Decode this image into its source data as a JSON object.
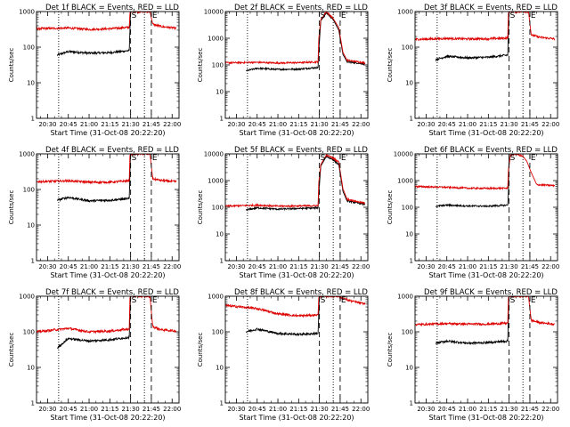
{
  "chart_data": [
    {
      "type": "line",
      "title": "Det 1f BLACK = Events, RED = LLD",
      "xlabel": "Start Time (31-Oct-08 20:22:20)",
      "ylabel": "Counts/sec",
      "ylim": [
        1,
        1000
      ],
      "yscale": "log",
      "xlim": [
        "20:22",
        "22:05"
      ],
      "xticks": [
        "20:30",
        "20:45",
        "21:00",
        "21:15",
        "21:30",
        "21:45",
        "22:00"
      ],
      "ytick_labels": [
        "1",
        "10",
        "100",
        "1000"
      ],
      "markers": [
        {
          "time": "20:38",
          "style": "dotted",
          "label": ""
        },
        {
          "time": "21:30",
          "style": "dashed",
          "label": "S"
        },
        {
          "time": "21:40",
          "style": "dotted",
          "label": ""
        },
        {
          "time": "21:45",
          "style": "dashed",
          "label": "E"
        }
      ],
      "series": [
        {
          "name": "Events",
          "color": "#000000",
          "x": [
            "20:37",
            "20:45",
            "21:00",
            "21:15",
            "21:29",
            "21:29.5",
            "21:30"
          ],
          "y": [
            60,
            75,
            68,
            70,
            80,
            300,
            1000
          ]
        },
        {
          "name": "LLD",
          "color": "#dd0000",
          "x": [
            "20:22",
            "20:45",
            "21:00",
            "21:15",
            "21:29",
            "21:29.5",
            "21:30",
            "21:44",
            "21:46",
            "21:52",
            "22:03"
          ],
          "y": [
            330,
            345,
            315,
            330,
            360,
            900,
            1000,
            1000,
            440,
            380,
            340
          ]
        }
      ]
    },
    {
      "type": "line",
      "title": "Det 2f BLACK = Events, RED = LLD",
      "xlabel": "Start Time (31-Oct-08 20:22:20)",
      "ylabel": "Counts/sec",
      "ylim": [
        1,
        10000
      ],
      "yscale": "log",
      "xlim": [
        "20:22",
        "22:05"
      ],
      "xticks": [
        "20:30",
        "20:45",
        "21:00",
        "21:15",
        "21:30",
        "21:45",
        "22:00"
      ],
      "ytick_labels": [
        "1",
        "10",
        "100",
        "1000",
        "10000"
      ],
      "markers": [
        {
          "time": "20:38",
          "style": "dotted",
          "label": ""
        },
        {
          "time": "21:30",
          "style": "dashed",
          "label": "S"
        },
        {
          "time": "21:40",
          "style": "dotted",
          "label": ""
        },
        {
          "time": "21:45",
          "style": "dashed",
          "label": "E"
        }
      ],
      "series": [
        {
          "name": "Events",
          "color": "#000000",
          "x": [
            "20:37",
            "20:45",
            "21:00",
            "21:15",
            "21:29",
            "21:29.5",
            "21:31",
            "21:35",
            "21:40",
            "21:44",
            "21:47",
            "21:50",
            "22:03"
          ],
          "y": [
            60,
            75,
            68,
            70,
            80,
            300,
            4500,
            9000,
            5000,
            2000,
            250,
            130,
            110
          ]
        },
        {
          "name": "LLD",
          "color": "#dd0000",
          "x": [
            "20:22",
            "20:45",
            "21:00",
            "21:15",
            "21:29",
            "21:29.5",
            "21:31",
            "21:35",
            "21:40",
            "21:44",
            "21:47",
            "21:50",
            "22:03"
          ],
          "y": [
            120,
            125,
            118,
            122,
            130,
            900,
            5000,
            10000,
            5500,
            2500,
            300,
            150,
            120
          ]
        }
      ]
    },
    {
      "type": "line",
      "title": "Det 3f BLACK = Events, RED = LLD",
      "xlabel": "Start Time (31-Oct-08 20:22:20)",
      "ylabel": "Counts/sec",
      "ylim": [
        1,
        1000
      ],
      "yscale": "log",
      "xlim": [
        "20:22",
        "22:05"
      ],
      "xticks": [
        "20:30",
        "20:45",
        "21:00",
        "21:15",
        "21:30",
        "21:45",
        "22:00"
      ],
      "ytick_labels": [
        "1",
        "10",
        "100",
        "1000"
      ],
      "markers": [
        {
          "time": "20:38",
          "style": "dotted",
          "label": ""
        },
        {
          "time": "21:30",
          "style": "dashed",
          "label": "S"
        },
        {
          "time": "21:40",
          "style": "dotted",
          "label": ""
        },
        {
          "time": "21:45",
          "style": "dashed",
          "label": "E"
        }
      ],
      "series": [
        {
          "name": "Events",
          "color": "#000000",
          "x": [
            "20:37",
            "20:45",
            "21:00",
            "21:15",
            "21:29",
            "21:29.5",
            "21:30"
          ],
          "y": [
            45,
            55,
            50,
            52,
            60,
            300,
            1000
          ]
        },
        {
          "name": "LLD",
          "color": "#dd0000",
          "x": [
            "20:22",
            "20:45",
            "21:00",
            "21:15",
            "21:29",
            "21:29.5",
            "21:30",
            "21:44",
            "21:46",
            "21:52",
            "22:03"
          ],
          "y": [
            165,
            175,
            170,
            172,
            180,
            900,
            1000,
            1000,
            220,
            190,
            170
          ]
        }
      ]
    },
    {
      "type": "line",
      "title": "Det 4f BLACK = Events, RED = LLD",
      "xlabel": "Start Time (31-Oct-08 20:22:20)",
      "ylabel": "Counts/sec",
      "ylim": [
        1,
        1000
      ],
      "yscale": "log",
      "xlim": [
        "20:22",
        "22:05"
      ],
      "xticks": [
        "20:30",
        "20:45",
        "21:00",
        "21:15",
        "21:30",
        "21:45",
        "22:00"
      ],
      "ytick_labels": [
        "1",
        "10",
        "100",
        "1000"
      ],
      "markers": [
        {
          "time": "20:38",
          "style": "dotted",
          "label": ""
        },
        {
          "time": "21:30",
          "style": "dashed",
          "label": "S"
        },
        {
          "time": "21:40",
          "style": "dotted",
          "label": ""
        },
        {
          "time": "21:45",
          "style": "dashed",
          "label": "E"
        }
      ],
      "series": [
        {
          "name": "Events",
          "color": "#000000",
          "x": [
            "20:37",
            "20:45",
            "21:00",
            "21:15",
            "21:29",
            "21:29.5",
            "21:30"
          ],
          "y": [
            50,
            60,
            48,
            50,
            55,
            300,
            1000
          ]
        },
        {
          "name": "LLD",
          "color": "#dd0000",
          "x": [
            "20:22",
            "20:45",
            "21:00",
            "21:15",
            "21:29",
            "21:29.5",
            "21:30",
            "21:44",
            "21:46",
            "21:52",
            "22:03"
          ],
          "y": [
            165,
            175,
            160,
            160,
            175,
            900,
            1000,
            1000,
            200,
            180,
            165
          ]
        }
      ]
    },
    {
      "type": "line",
      "title": "Det 5f BLACK = Events, RED = LLD",
      "xlabel": "Start Time (31-Oct-08 20:22:20)",
      "ylabel": "Counts/sec",
      "ylim": [
        1,
        10000
      ],
      "yscale": "log",
      "xlim": [
        "20:22",
        "22:05"
      ],
      "xticks": [
        "20:30",
        "20:45",
        "21:00",
        "21:15",
        "21:30",
        "21:45",
        "22:00"
      ],
      "ytick_labels": [
        "1",
        "10",
        "100",
        "1000",
        "10000"
      ],
      "markers": [
        {
          "time": "20:38",
          "style": "dotted",
          "label": ""
        },
        {
          "time": "21:30",
          "style": "dashed",
          "label": "S"
        },
        {
          "time": "21:40",
          "style": "dotted",
          "label": ""
        },
        {
          "time": "21:45",
          "style": "dashed",
          "label": "E"
        }
      ],
      "series": [
        {
          "name": "Events",
          "color": "#000000",
          "x": [
            "20:37",
            "20:45",
            "21:00",
            "21:15",
            "21:29",
            "21:29.5",
            "21:31",
            "21:35",
            "21:40",
            "21:44",
            "21:47",
            "21:50",
            "22:03"
          ],
          "y": [
            80,
            95,
            85,
            90,
            95,
            300,
            3500,
            8000,
            6000,
            4000,
            400,
            170,
            130
          ]
        },
        {
          "name": "LLD",
          "color": "#dd0000",
          "x": [
            "20:22",
            "20:45",
            "21:00",
            "21:15",
            "21:29",
            "21:29.5",
            "21:31",
            "21:35",
            "21:40",
            "21:44",
            "21:47",
            "21:50",
            "22:03"
          ],
          "y": [
            110,
            120,
            110,
            112,
            115,
            800,
            4000,
            9000,
            7000,
            5000,
            500,
            200,
            140
          ]
        }
      ]
    },
    {
      "type": "line",
      "title": "Det 6f BLACK = Events, RED = LLD",
      "xlabel": "Start Time (31-Oct-08 20:22:20)",
      "ylabel": "Counts/sec",
      "ylim": [
        1,
        10000
      ],
      "yscale": "log",
      "xlim": [
        "20:22",
        "22:05"
      ],
      "xticks": [
        "20:30",
        "20:45",
        "21:00",
        "21:15",
        "21:30",
        "21:45",
        "22:00"
      ],
      "ytick_labels": [
        "1",
        "10",
        "100",
        "1000",
        "10000"
      ],
      "markers": [
        {
          "time": "20:38",
          "style": "dotted",
          "label": ""
        },
        {
          "time": "21:30",
          "style": "dashed",
          "label": "S"
        },
        {
          "time": "21:40",
          "style": "dotted",
          "label": ""
        },
        {
          "time": "21:45",
          "style": "dashed",
          "label": "E"
        }
      ],
      "series": [
        {
          "name": "Events",
          "color": "#000000",
          "x": [
            "20:37",
            "20:45",
            "21:00",
            "21:15",
            "21:29",
            "21:29.5",
            "21:30"
          ],
          "y": [
            110,
            120,
            112,
            110,
            120,
            400,
            10000
          ]
        },
        {
          "name": "LLD",
          "color": "#dd0000",
          "x": [
            "20:22",
            "20:45",
            "21:00",
            "21:15",
            "21:29",
            "21:29.5",
            "21:31",
            "21:35",
            "21:40",
            "21:43",
            "21:46",
            "21:50",
            "22:03"
          ],
          "y": [
            600,
            560,
            520,
            510,
            520,
            2500,
            9000,
            10000,
            8000,
            5000,
            2000,
            700,
            650
          ]
        }
      ]
    },
    {
      "type": "line",
      "title": "Det 7f BLACK = Events, RED = LLD",
      "xlabel": "Start Time (31-Oct-08 20:22:20)",
      "ylabel": "Counts/sec",
      "ylim": [
        1,
        1000
      ],
      "yscale": "log",
      "xlim": [
        "20:22",
        "22:05"
      ],
      "xticks": [
        "20:30",
        "20:45",
        "21:00",
        "21:15",
        "21:30",
        "21:45",
        "22:00"
      ],
      "ytick_labels": [
        "1",
        "10",
        "100",
        "1000"
      ],
      "markers": [
        {
          "time": "20:38",
          "style": "dotted",
          "label": ""
        },
        {
          "time": "21:30",
          "style": "dashed",
          "label": "S"
        },
        {
          "time": "21:40",
          "style": "dotted",
          "label": ""
        },
        {
          "time": "21:45",
          "style": "dashed",
          "label": "E"
        }
      ],
      "series": [
        {
          "name": "Events",
          "color": "#000000",
          "x": [
            "20:37",
            "20:45",
            "21:00",
            "21:15",
            "21:29",
            "21:29.5",
            "21:30"
          ],
          "y": [
            35,
            65,
            55,
            60,
            70,
            300,
            1000
          ]
        },
        {
          "name": "LLD",
          "color": "#dd0000",
          "x": [
            "20:22",
            "20:45",
            "21:00",
            "21:15",
            "21:29",
            "21:29.5",
            "21:30",
            "21:44",
            "21:46",
            "21:52",
            "22:03"
          ],
          "y": [
            100,
            125,
            100,
            105,
            120,
            900,
            1000,
            1000,
            140,
            115,
            105
          ]
        }
      ]
    },
    {
      "type": "line",
      "title": "Det 8f BLACK = Events, RED = LLD",
      "xlabel": "Start Time (31-Oct-08 20:22:20)",
      "ylabel": "Counts/sec",
      "ylim": [
        1,
        1000
      ],
      "yscale": "log",
      "xlim": [
        "20:22",
        "22:05"
      ],
      "xticks": [
        "20:30",
        "20:45",
        "21:00",
        "21:15",
        "21:30",
        "21:45",
        "22:00"
      ],
      "ytick_labels": [
        "1",
        "10",
        "100",
        "1000"
      ],
      "markers": [
        {
          "time": "20:38",
          "style": "dotted",
          "label": ""
        },
        {
          "time": "21:30",
          "style": "dashed",
          "label": "S"
        },
        {
          "time": "21:40",
          "style": "dotted",
          "label": ""
        },
        {
          "time": "21:45",
          "style": "dashed",
          "label": "E"
        }
      ],
      "series": [
        {
          "name": "Events",
          "color": "#000000",
          "x": [
            "20:37",
            "20:45",
            "21:00",
            "21:15",
            "21:29",
            "21:29.5",
            "21:30"
          ],
          "y": [
            100,
            120,
            90,
            85,
            90,
            300,
            1000
          ]
        },
        {
          "name": "LLD",
          "color": "#dd0000",
          "x": [
            "20:22",
            "20:45",
            "21:00",
            "21:15",
            "21:29",
            "21:29.5",
            "21:30",
            "21:44",
            "21:46",
            "21:52",
            "22:03"
          ],
          "y": [
            550,
            450,
            320,
            280,
            300,
            900,
            1000,
            1000,
            900,
            750,
            600
          ]
        }
      ]
    },
    {
      "type": "line",
      "title": "Det 9f BLACK = Events, RED = LLD",
      "xlabel": "Start Time (31-Oct-08 20:22:20)",
      "ylabel": "Counts/sec",
      "ylim": [
        1,
        1000
      ],
      "yscale": "log",
      "xlim": [
        "20:22",
        "22:05"
      ],
      "xticks": [
        "20:30",
        "20:45",
        "21:00",
        "21:15",
        "21:30",
        "21:45",
        "22:00"
      ],
      "ytick_labels": [
        "1",
        "10",
        "100",
        "1000"
      ],
      "markers": [
        {
          "time": "20:38",
          "style": "dotted",
          "label": ""
        },
        {
          "time": "21:30",
          "style": "dashed",
          "label": "S"
        },
        {
          "time": "21:40",
          "style": "dotted",
          "label": ""
        },
        {
          "time": "21:45",
          "style": "dashed",
          "label": "E"
        }
      ],
      "series": [
        {
          "name": "Events",
          "color": "#000000",
          "x": [
            "20:37",
            "20:45",
            "21:00",
            "21:15",
            "21:29",
            "21:29.5",
            "21:30"
          ],
          "y": [
            48,
            55,
            48,
            50,
            55,
            300,
            1000
          ]
        },
        {
          "name": "LLD",
          "color": "#dd0000",
          "x": [
            "20:22",
            "20:45",
            "21:00",
            "21:15",
            "21:29",
            "21:29.5",
            "21:30",
            "21:44",
            "21:46",
            "21:52",
            "22:03"
          ],
          "y": [
            160,
            170,
            165,
            165,
            175,
            900,
            1000,
            1000,
            210,
            180,
            165
          ]
        }
      ]
    }
  ]
}
